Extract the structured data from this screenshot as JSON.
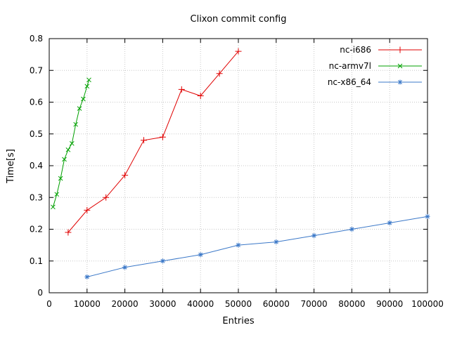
{
  "chart_data": {
    "type": "line",
    "title": "Clixon commit config",
    "xlabel": "Entries",
    "ylabel": "Time[s]",
    "xlim": [
      0,
      100000
    ],
    "ylim": [
      0,
      0.8
    ],
    "xticks": [
      0,
      10000,
      20000,
      30000,
      40000,
      50000,
      60000,
      70000,
      80000,
      90000,
      100000
    ],
    "yticks": [
      0,
      0.1,
      0.2,
      0.3,
      0.4,
      0.5,
      0.6,
      0.7,
      0.8
    ],
    "grid": true,
    "legend_position": "top-right-inside",
    "series": [
      {
        "name": "nc-i686",
        "color": "#e00000",
        "marker": "plus",
        "x": [
          5000,
          10000,
          15000,
          20000,
          25000,
          30000,
          35000,
          40000,
          45000,
          50000
        ],
        "y": [
          0.19,
          0.26,
          0.3,
          0.37,
          0.48,
          0.49,
          0.64,
          0.62,
          0.69,
          0.76
        ]
      },
      {
        "name": "nc-armv7l",
        "color": "#00a000",
        "marker": "cross",
        "x": [
          1000,
          2000,
          3000,
          4000,
          5000,
          6000,
          7000,
          8000,
          9000,
          10000,
          10500
        ],
        "y": [
          0.27,
          0.31,
          0.36,
          0.42,
          0.45,
          0.47,
          0.53,
          0.58,
          0.61,
          0.65,
          0.67
        ]
      },
      {
        "name": "nc-x86_64",
        "color": "#3b78c8",
        "marker": "star",
        "x": [
          10000,
          20000,
          30000,
          40000,
          50000,
          60000,
          70000,
          80000,
          90000,
          100000
        ],
        "y": [
          0.05,
          0.08,
          0.1,
          0.12,
          0.15,
          0.16,
          0.18,
          0.2,
          0.22,
          0.24
        ]
      }
    ]
  }
}
